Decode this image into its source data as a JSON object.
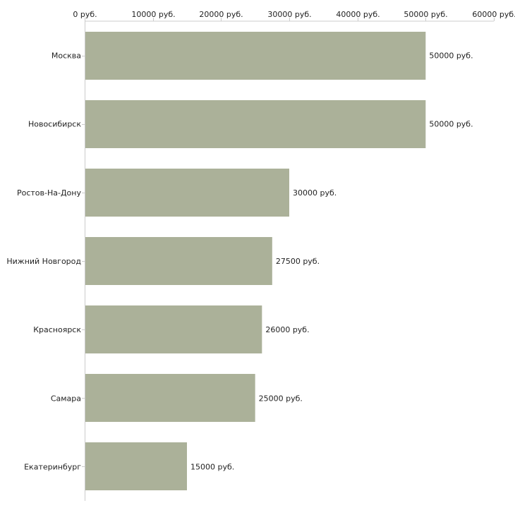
{
  "chart_data": {
    "type": "bar",
    "orientation": "horizontal",
    "title": "",
    "xlabel": "",
    "ylabel": "",
    "categories": [
      "Москва",
      "Новосибирск",
      "Ростов-На-Дону",
      "Нижний Новгород",
      "Красноярск",
      "Самара",
      "Екатеринбург"
    ],
    "values": [
      50000,
      50000,
      30000,
      27500,
      26000,
      25000,
      15000
    ],
    "value_labels": [
      "50000 руб.",
      "50000 руб.",
      "30000 руб.",
      "27500 руб.",
      "26000 руб.",
      "25000 руб.",
      "15000 руб."
    ],
    "xlim": [
      0,
      60000
    ],
    "ticks": [
      0,
      10000,
      20000,
      30000,
      40000,
      50000,
      60000
    ],
    "tick_labels": [
      "0 руб.",
      "10000 руб.",
      "20000 руб.",
      "30000 руб.",
      "40000 руб.",
      "50000 руб.",
      "60000 руб."
    ],
    "axis_position": "top",
    "grid": false,
    "bar_color": "#abb199",
    "axis_color": "#cccccc",
    "text_color": "#222222"
  }
}
